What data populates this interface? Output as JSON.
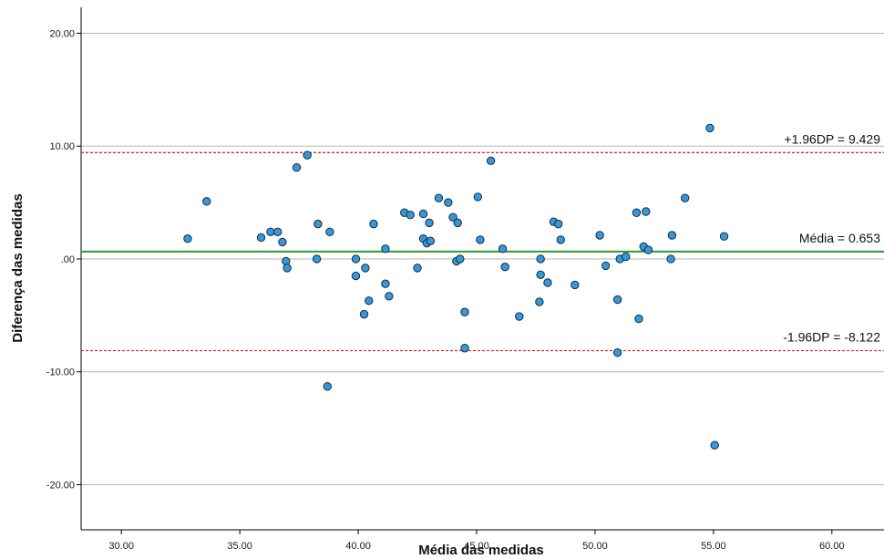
{
  "chart_data": {
    "type": "scatter",
    "xlabel": "Média das medidas",
    "ylabel": "Diferença das medidas",
    "xlim": [
      28.3,
      62.2
    ],
    "ylim": [
      -24.0,
      22.3
    ],
    "x_ticks": [
      "30.00",
      "35.00",
      "40.00",
      "45.00",
      "50.00",
      "55.00",
      "60.00"
    ],
    "y_ticks": [
      "20.00",
      "10.00",
      ".00",
      "-10.00",
      "-20.00"
    ],
    "grid": "horizontal",
    "reference_lines": [
      {
        "label": "+1.96DP = 9.429",
        "value": 9.429,
        "style": "dashed",
        "color": "#c0392b"
      },
      {
        "label": "Média = 0.653",
        "value": 0.653,
        "style": "solid",
        "color": "#2e9a2e"
      },
      {
        "label": "-1.96DP = -8.122",
        "value": -8.122,
        "style": "dashed",
        "color": "#c0392b"
      }
    ],
    "marker_color": "#3399dd",
    "points": [
      {
        "x": 32.8,
        "y": 1.8
      },
      {
        "x": 33.6,
        "y": 5.1
      },
      {
        "x": 35.9,
        "y": 1.9
      },
      {
        "x": 36.3,
        "y": 2.4
      },
      {
        "x": 36.6,
        "y": 2.4
      },
      {
        "x": 36.8,
        "y": 1.5
      },
      {
        "x": 36.95,
        "y": -0.2
      },
      {
        "x": 37.0,
        "y": -0.8
      },
      {
        "x": 37.4,
        "y": 8.1
      },
      {
        "x": 37.85,
        "y": 9.2
      },
      {
        "x": 38.25,
        "y": 0.0
      },
      {
        "x": 38.3,
        "y": 3.1
      },
      {
        "x": 38.7,
        "y": -11.3
      },
      {
        "x": 38.8,
        "y": 2.4
      },
      {
        "x": 39.9,
        "y": 0.0
      },
      {
        "x": 39.9,
        "y": -1.5
      },
      {
        "x": 40.25,
        "y": -4.9
      },
      {
        "x": 40.3,
        "y": -0.8
      },
      {
        "x": 40.45,
        "y": -3.7
      },
      {
        "x": 40.65,
        "y": 3.1
      },
      {
        "x": 41.15,
        "y": 0.9
      },
      {
        "x": 41.15,
        "y": -2.2
      },
      {
        "x": 41.3,
        "y": -3.3
      },
      {
        "x": 41.95,
        "y": 4.1
      },
      {
        "x": 42.2,
        "y": 3.9
      },
      {
        "x": 42.5,
        "y": -0.8
      },
      {
        "x": 42.75,
        "y": 4.0
      },
      {
        "x": 42.75,
        "y": 1.8
      },
      {
        "x": 42.9,
        "y": 1.4
      },
      {
        "x": 43.0,
        "y": 3.2
      },
      {
        "x": 43.05,
        "y": 1.6
      },
      {
        "x": 43.4,
        "y": 5.4
      },
      {
        "x": 43.8,
        "y": 5.0
      },
      {
        "x": 44.0,
        "y": 3.7
      },
      {
        "x": 44.15,
        "y": -0.2
      },
      {
        "x": 44.2,
        "y": 3.2
      },
      {
        "x": 44.3,
        "y": 0.0
      },
      {
        "x": 44.5,
        "y": -4.7
      },
      {
        "x": 44.5,
        "y": -7.9
      },
      {
        "x": 45.05,
        "y": 5.5
      },
      {
        "x": 45.15,
        "y": 1.7
      },
      {
        "x": 45.6,
        "y": 8.7
      },
      {
        "x": 46.1,
        "y": 0.9
      },
      {
        "x": 46.2,
        "y": -0.7
      },
      {
        "x": 46.8,
        "y": -5.1
      },
      {
        "x": 47.65,
        "y": -3.8
      },
      {
        "x": 47.7,
        "y": 0.0
      },
      {
        "x": 47.7,
        "y": -1.4
      },
      {
        "x": 48.0,
        "y": -2.1
      },
      {
        "x": 48.25,
        "y": 3.3
      },
      {
        "x": 48.45,
        "y": 3.1
      },
      {
        "x": 48.55,
        "y": 1.7
      },
      {
        "x": 49.15,
        "y": -2.3
      },
      {
        "x": 50.2,
        "y": 2.1
      },
      {
        "x": 50.45,
        "y": -0.6
      },
      {
        "x": 50.95,
        "y": -3.6
      },
      {
        "x": 50.95,
        "y": -8.3
      },
      {
        "x": 51.05,
        "y": 0.0
      },
      {
        "x": 51.3,
        "y": 0.2
      },
      {
        "x": 51.75,
        "y": 4.1
      },
      {
        "x": 51.85,
        "y": -5.3
      },
      {
        "x": 52.05,
        "y": 1.1
      },
      {
        "x": 52.15,
        "y": 4.2
      },
      {
        "x": 52.25,
        "y": 0.8
      },
      {
        "x": 53.2,
        "y": 0.0
      },
      {
        "x": 53.25,
        "y": 2.1
      },
      {
        "x": 53.8,
        "y": 5.4
      },
      {
        "x": 54.85,
        "y": 11.6
      },
      {
        "x": 55.05,
        "y": -16.5
      },
      {
        "x": 55.45,
        "y": 2.0
      }
    ]
  }
}
